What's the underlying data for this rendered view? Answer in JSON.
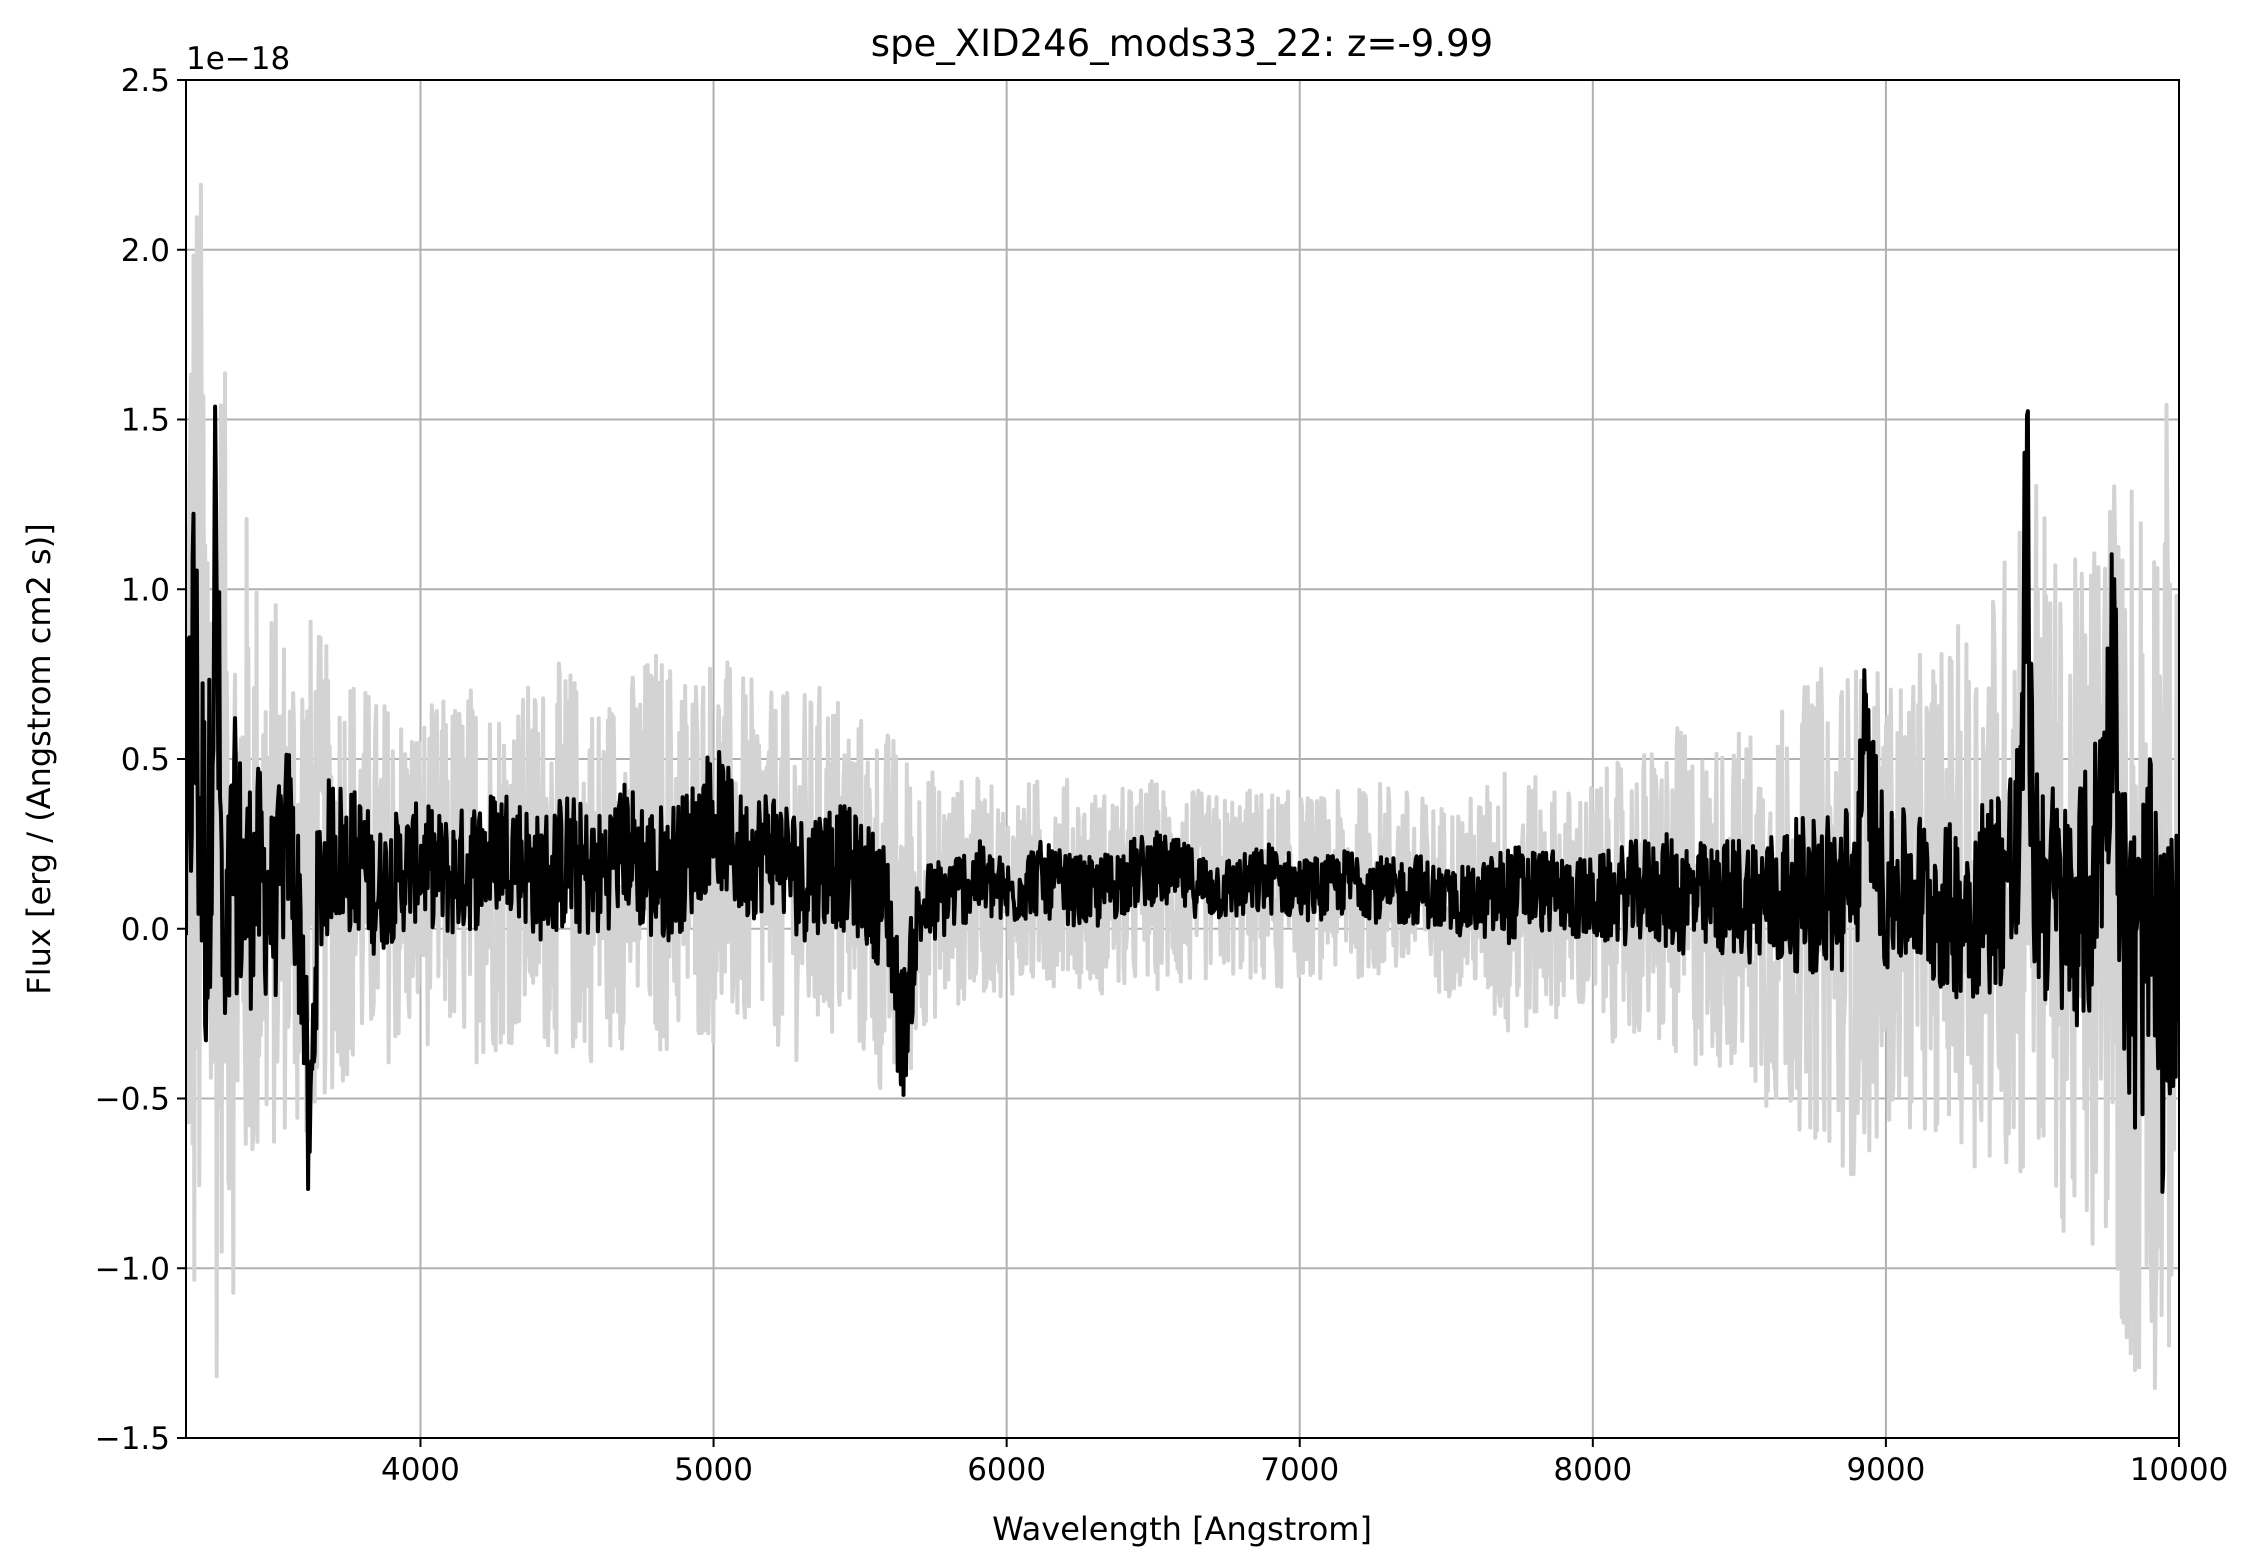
{
  "chart_data": {
    "type": "line",
    "title": "spe_XID246_mods33_22: z=-9.99",
    "xlabel": "Wavelength [Angstrom]",
    "ylabel": "Flux [erg / (Angstrom cm2 s)]",
    "offset_text": "1e−18",
    "xlim": [
      3200,
      10000
    ],
    "ylim": [
      -1.5,
      2.5
    ],
    "y_scale_exponent": -18,
    "x_ticks": [
      4000,
      5000,
      6000,
      7000,
      8000,
      9000,
      10000
    ],
    "x_tick_labels": [
      "4000",
      "5000",
      "6000",
      "7000",
      "8000",
      "9000",
      "10000"
    ],
    "y_ticks": [
      -1.5,
      -1.0,
      -0.5,
      0.0,
      0.5,
      1.0,
      1.5,
      2.0,
      2.5
    ],
    "y_tick_labels": [
      "−1.5",
      "−1.0",
      "−0.5",
      "0.0",
      "0.5",
      "1.0",
      "1.5",
      "2.0",
      "2.5"
    ],
    "grid": true,
    "colors": {
      "flux": "#000000",
      "error": "#d3d3d3",
      "grid": "#b0b0b0"
    },
    "series": [
      {
        "role": "flux",
        "x": [
          3200,
          3225,
          3250,
          3275,
          3300,
          3330,
          3360,
          3400,
          3450,
          3500,
          3550,
          3600,
          3620,
          3650,
          3700,
          3750,
          3800,
          3850,
          3900,
          4000,
          4100,
          4200,
          4300,
          4400,
          4500,
          4600,
          4700,
          4800,
          4900,
          5000,
          5100,
          5200,
          5300,
          5400,
          5500,
          5600,
          5630,
          5650,
          5700,
          5800,
          5900,
          6000,
          6100,
          6200,
          6300,
          6400,
          6500,
          6600,
          6700,
          6800,
          6900,
          7000,
          7100,
          7200,
          7300,
          7400,
          7500,
          7600,
          7700,
          7800,
          7900,
          8000,
          8100,
          8200,
          8300,
          8400,
          8500,
          8600,
          8700,
          8800,
          8900,
          8920,
          9000,
          9100,
          9200,
          9300,
          9400,
          9460,
          9480,
          9500,
          9600,
          9700,
          9760,
          9780,
          9800,
          9850,
          9900,
          9950,
          10000
        ],
        "y": [
          0.2,
          0.75,
          0.35,
          0.05,
          1.15,
          -0.3,
          0.25,
          0.1,
          0.15,
          0.05,
          0.3,
          -0.1,
          -0.7,
          0.1,
          0.25,
          0.2,
          0.2,
          0.1,
          0.15,
          0.2,
          0.15,
          0.2,
          0.25,
          0.15,
          0.2,
          0.15,
          0.25,
          0.15,
          0.2,
          0.35,
          0.2,
          0.25,
          0.15,
          0.2,
          0.15,
          0.05,
          -0.25,
          -0.3,
          0.05,
          0.1,
          0.15,
          0.1,
          0.15,
          0.12,
          0.1,
          0.15,
          0.18,
          0.15,
          0.12,
          0.12,
          0.15,
          0.12,
          0.12,
          0.15,
          0.1,
          0.12,
          0.08,
          0.08,
          0.1,
          0.12,
          0.1,
          0.08,
          0.1,
          0.12,
          0.1,
          0.08,
          0.1,
          0.08,
          0.1,
          0.1,
          0.12,
          0.55,
          0.1,
          0.12,
          0.05,
          0.08,
          0.15,
          0.2,
          1.4,
          0.2,
          0.05,
          0.1,
          0.55,
          0.95,
          0.1,
          -0.2,
          0.05,
          -0.3,
          0.0
        ]
      },
      {
        "role": "error",
        "x": [
          3200,
          3225,
          3250,
          3275,
          3300,
          3330,
          3360,
          3400,
          3450,
          3500,
          3550,
          3600,
          3650,
          3700,
          3750,
          3800,
          3850,
          3900,
          4000,
          4100,
          4200,
          4300,
          4400,
          4500,
          4600,
          4700,
          4800,
          4900,
          5000,
          5100,
          5200,
          5300,
          5400,
          5500,
          5600,
          5650,
          5700,
          5800,
          5900,
          6000,
          6100,
          6200,
          6300,
          6400,
          6500,
          6600,
          6700,
          6800,
          6900,
          7000,
          7100,
          7200,
          7300,
          7400,
          7500,
          7600,
          7700,
          7800,
          7900,
          8000,
          8100,
          8200,
          8300,
          8400,
          8500,
          8600,
          8700,
          8800,
          8900,
          9000,
          9100,
          9200,
          9300,
          9400,
          9480,
          9500,
          9600,
          9700,
          9780,
          9800,
          9850,
          9900,
          9950,
          10000
        ],
        "y_upper": [
          2.2,
          2.5,
          2.3,
          2.0,
          2.0,
          1.7,
          1.2,
          1.3,
          1.1,
          1.0,
          0.95,
          1.0,
          0.9,
          0.8,
          0.85,
          0.75,
          0.7,
          0.7,
          0.65,
          0.7,
          0.75,
          0.7,
          0.75,
          0.8,
          0.7,
          0.75,
          0.85,
          0.8,
          0.85,
          0.75,
          0.7,
          0.7,
          0.75,
          0.65,
          0.6,
          0.55,
          0.5,
          0.45,
          0.45,
          0.4,
          0.45,
          0.45,
          0.42,
          0.42,
          0.45,
          0.42,
          0.4,
          0.42,
          0.42,
          0.4,
          0.4,
          0.42,
          0.45,
          0.4,
          0.38,
          0.4,
          0.5,
          0.45,
          0.42,
          0.45,
          0.5,
          0.55,
          0.6,
          0.55,
          0.6,
          0.65,
          0.7,
          0.8,
          0.8,
          0.75,
          0.8,
          0.85,
          0.95,
          1.1,
          1.75,
          1.5,
          1.0,
          1.2,
          1.5,
          1.1,
          1.6,
          1.3,
          1.7,
          0.9
        ],
        "y_lower": [
          -1.0,
          -1.5,
          -1.3,
          -1.1,
          -1.5,
          -0.8,
          -1.1,
          -0.9,
          -0.8,
          -0.7,
          -0.6,
          -0.7,
          -0.55,
          -0.5,
          -0.45,
          -0.45,
          -0.4,
          -0.4,
          -0.35,
          -0.35,
          -0.4,
          -0.35,
          -0.35,
          -0.4,
          -0.4,
          -0.35,
          -0.4,
          -0.35,
          -0.35,
          -0.35,
          -0.35,
          -0.4,
          -0.35,
          -0.4,
          -0.55,
          -0.6,
          -0.3,
          -0.25,
          -0.2,
          -0.2,
          -0.2,
          -0.15,
          -0.2,
          -0.2,
          -0.18,
          -0.2,
          -0.15,
          -0.15,
          -0.2,
          -0.15,
          -0.15,
          -0.15,
          -0.15,
          -0.2,
          -0.2,
          -0.2,
          -0.35,
          -0.3,
          -0.25,
          -0.3,
          -0.35,
          -0.35,
          -0.45,
          -0.4,
          -0.45,
          -0.55,
          -0.6,
          -0.65,
          -0.75,
          -0.6,
          -0.6,
          -0.6,
          -0.7,
          -0.75,
          -0.8,
          -0.75,
          -0.9,
          -1.05,
          -0.9,
          -1.2,
          -1.5,
          -1.3,
          -1.5,
          -0.9
        ]
      }
    ]
  }
}
